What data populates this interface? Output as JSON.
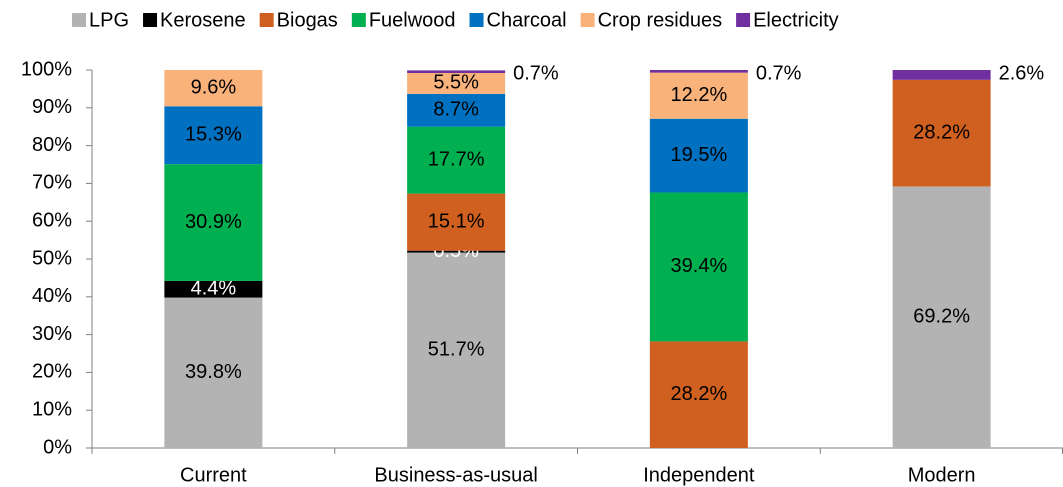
{
  "chart_data": {
    "type": "stacked_bar",
    "categories": [
      "Current",
      "Business-as-usual",
      "Independent",
      "Modern"
    ],
    "series": [
      {
        "name": "LPG",
        "color": "#b3b3b3",
        "values": [
          39.8,
          51.7,
          null,
          69.2
        ],
        "value_labels": [
          "39.8%",
          "51.7%",
          null,
          "69.2%"
        ]
      },
      {
        "name": "Kerosene",
        "color": "#000000",
        "values": [
          4.4,
          0.5,
          null,
          null
        ],
        "value_labels": [
          "4.4%",
          "0.5%",
          null,
          null
        ]
      },
      {
        "name": "Biogas",
        "color": "#d0601f",
        "values": [
          null,
          15.1,
          28.2,
          28.2
        ],
        "value_labels": [
          null,
          "15.1%",
          "28.2%",
          "28.2%"
        ]
      },
      {
        "name": "Fuelwood",
        "color": "#00b050",
        "values": [
          30.9,
          17.7,
          39.4,
          null
        ],
        "value_labels": [
          "30.9%",
          "17.7%",
          "39.4%",
          null
        ]
      },
      {
        "name": "Charcoal",
        "color": "#0070c0",
        "values": [
          15.3,
          8.7,
          19.5,
          null
        ],
        "value_labels": [
          "15.3%",
          "8.7%",
          "19.5%",
          null
        ]
      },
      {
        "name": "Crop residues",
        "color": "#fab27b",
        "values": [
          9.6,
          5.5,
          12.2,
          null
        ],
        "value_labels": [
          "9.6%",
          "5.5%",
          "12.2%",
          null
        ]
      },
      {
        "name": "Electricity",
        "color": "#7030a0",
        "values": [
          null,
          0.7,
          0.7,
          2.6
        ],
        "value_labels": [
          null,
          "0.7%",
          "0.7%",
          "2.6%"
        ]
      }
    ],
    "ylim": [
      0,
      100
    ],
    "yticks": [
      {
        "value": 0,
        "label": "0%"
      },
      {
        "value": 10,
        "label": "10%"
      },
      {
        "value": 20,
        "label": "20%"
      },
      {
        "value": 30,
        "label": "30%"
      },
      {
        "value": 40,
        "label": "40%"
      },
      {
        "value": 50,
        "label": "50%"
      },
      {
        "value": 60,
        "label": "60%"
      },
      {
        "value": 70,
        "label": "70%"
      },
      {
        "value": 80,
        "label": "80%"
      },
      {
        "value": 90,
        "label": "90%"
      },
      {
        "value": 100,
        "label": "100%"
      }
    ],
    "legend": "top"
  }
}
